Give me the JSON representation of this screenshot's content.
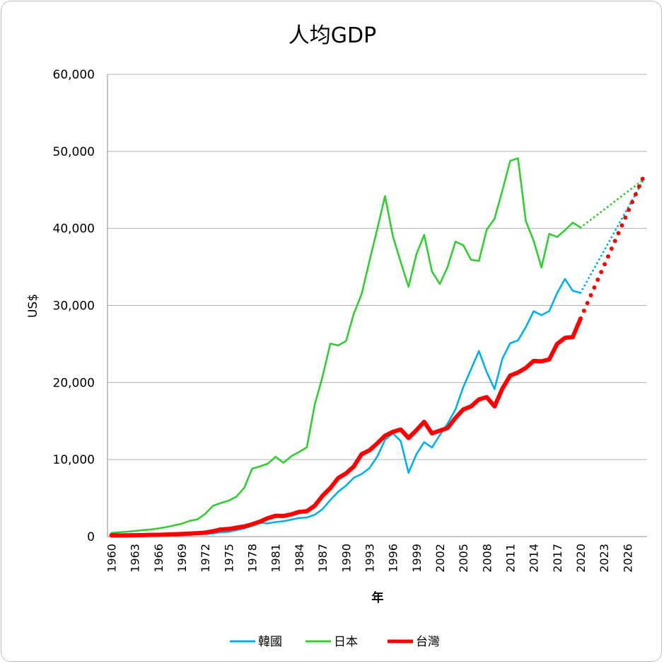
{
  "chart_data": {
    "type": "line",
    "title": "人均GDP",
    "xlabel": "年",
    "ylabel": "US$",
    "ylim": [
      0,
      60000
    ],
    "yticks": [
      0,
      10000,
      20000,
      30000,
      40000,
      50000,
      60000
    ],
    "ytick_labels": [
      "0",
      "10,000",
      "20,000",
      "30,000",
      "40,000",
      "50,000",
      "60,000"
    ],
    "x_start": 1960,
    "x_end": 2028,
    "xtick_labels": [
      "1960",
      "1963",
      "1966",
      "1969",
      "1972",
      "1975",
      "1978",
      "1981",
      "1984",
      "1987",
      "1990",
      "1993",
      "1996",
      "1999",
      "2002",
      "2005",
      "2008",
      "2011",
      "2014",
      "2017",
      "2020",
      "2023",
      "2026"
    ],
    "grid": "horizontal",
    "legend": "bottom",
    "series": [
      {
        "name": "韓國",
        "color": "#00b0f0",
        "start": 1960,
        "values": [
          158,
          94,
          106,
          146,
          124,
          108,
          133,
          161,
          199,
          243,
          279,
          301,
          324,
          406,
          563,
          617,
          834,
          1055,
          1406,
          1784,
          1715,
          1883,
          1992,
          2199,
          2413,
          2482,
          2835,
          3555,
          4749,
          5818,
          6610,
          7637,
          8127,
          8885,
          10385,
          12565,
          13403,
          12398,
          8282,
          10672,
          12257,
          11561,
          13165,
          14673,
          16496,
          19403,
          21743,
          24086,
          21350,
          19144,
          23087,
          25096,
          25467,
          27180,
          29253,
          28737,
          29274,
          31601,
          33447,
          31902,
          31638
        ],
        "projection": {
          "from": 2020,
          "to": 2028,
          "values": [
            31638,
            46200
          ]
        }
      },
      {
        "name": "日本",
        "color": "#33cc33",
        "start": 1960,
        "values": [
          479,
          564,
          633,
          718,
          835,
          919,
          1058,
          1229,
          1451,
          1669,
          2037,
          2234,
          2950,
          3998,
          4354,
          4659,
          5198,
          6335,
          8821,
          9105,
          9463,
          10361,
          9578,
          10425,
          10984,
          11585,
          17112,
          20745,
          25051,
          24813,
          25371,
          28925,
          31465,
          35766,
          39934,
          44198,
          38981,
          35635,
          32423,
          36610,
          39169,
          34406,
          32789,
          35008,
          38288,
          37818,
          35934,
          35775,
          39839,
          41255,
          44908,
          48768,
          49103,
          40954,
          38409,
          34924,
          39294,
          38887,
          39759,
          40747,
          40118
        ],
        "projection": {
          "from": 2020,
          "to": 2028,
          "values": [
            40118,
            46300
          ]
        }
      },
      {
        "name": "台灣",
        "color": "#ff0000",
        "start": 1960,
        "values": [
          160,
          150,
          160,
          175,
          200,
          215,
          235,
          265,
          300,
          345,
          393,
          443,
          522,
          695,
          920,
          985,
          1158,
          1320,
          1600,
          1940,
          2385,
          2700,
          2680,
          2880,
          3200,
          3300,
          4000,
          5300,
          6300,
          7600,
          8200,
          9100,
          10700,
          11200,
          12100,
          13100,
          13600,
          13900,
          12800,
          13800,
          14900,
          13400,
          13750,
          14100,
          15400,
          16500,
          16900,
          17800,
          18100,
          16900,
          19200,
          20900,
          21300,
          21900,
          22800,
          22750,
          23000,
          25000,
          25800,
          25900,
          28300
        ],
        "projection": {
          "from": 2020,
          "to": 2028,
          "values": [
            28300,
            46600
          ]
        }
      }
    ]
  }
}
